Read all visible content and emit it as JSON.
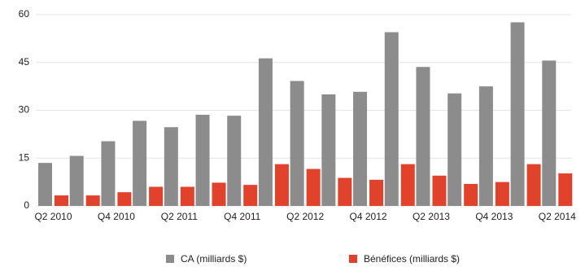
{
  "chart_data": {
    "type": "bar",
    "categories": [
      "Q2 2010",
      null,
      "Q4 2010",
      null,
      "Q2 2011",
      null,
      "Q4 2011",
      null,
      "Q2 2012",
      null,
      "Q4 2012",
      null,
      "Q2 2013",
      null,
      "Q4 2013",
      null,
      "Q2 2014"
    ],
    "series": [
      {
        "name": "CA (milliards $)",
        "color": "#8c8c8c",
        "values": [
          13.5,
          15.7,
          20.3,
          26.7,
          24.7,
          28.6,
          28.3,
          46.3,
          39.2,
          35.0,
          35.8,
          54.5,
          43.6,
          35.3,
          37.5,
          57.6,
          45.6
        ]
      },
      {
        "name": "Bénéfices (milliards $)",
        "color": "#e0422b",
        "values": [
          3.3,
          3.3,
          4.3,
          6.0,
          6.0,
          7.3,
          6.6,
          13.1,
          11.6,
          8.8,
          8.2,
          13.1,
          9.5,
          6.9,
          7.5,
          13.1,
          10.2
        ]
      }
    ],
    "ylim": [
      0,
      60
    ],
    "yticks": [
      0,
      15,
      30,
      45,
      60
    ],
    "grid": true
  }
}
